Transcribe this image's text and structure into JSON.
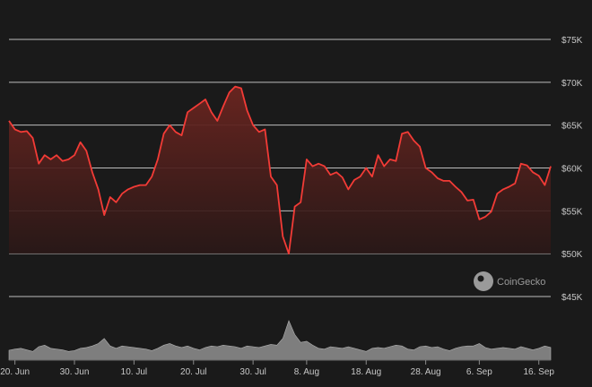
{
  "watermark": {
    "text": "CoinGecko"
  },
  "chart_data": {
    "type": "area",
    "title": "",
    "xlabel": "",
    "ylabel": "",
    "ylim": [
      40000,
      77500
    ],
    "grid": true,
    "y_ticks": [
      {
        "value": 75000,
        "label": "$75K"
      },
      {
        "value": 70000,
        "label": "$70K"
      },
      {
        "value": 65000,
        "label": "$65K"
      },
      {
        "value": 60000,
        "label": "$60K"
      },
      {
        "value": 55000,
        "label": "$55K"
      },
      {
        "value": 50000,
        "label": "$50K"
      },
      {
        "value": 45000,
        "label": "$45K"
      }
    ],
    "x_ticks": [
      "20. Jun",
      "30. Jun",
      "10. Jul",
      "20. Jul",
      "30. Jul",
      "8. Aug",
      "18. Aug",
      "28. Aug",
      "6. Sep",
      "16. Sep"
    ],
    "x_tick_dates": [
      "2024-06-20",
      "2024-06-30",
      "2024-07-10",
      "2024-07-20",
      "2024-07-30",
      "2024-08-08",
      "2024-08-18",
      "2024-08-28",
      "2024-09-06",
      "2024-09-16"
    ],
    "colors": {
      "line": "#f23b36",
      "fill_top": "#6b2520",
      "fill_bottom": "#2a1817",
      "grid": "#d9d9d9",
      "volume": "#8a8a8a"
    },
    "x": [
      "2024-06-19",
      "2024-06-20",
      "2024-06-21",
      "2024-06-22",
      "2024-06-23",
      "2024-06-24",
      "2024-06-25",
      "2024-06-26",
      "2024-06-27",
      "2024-06-28",
      "2024-06-29",
      "2024-06-30",
      "2024-07-01",
      "2024-07-02",
      "2024-07-03",
      "2024-07-04",
      "2024-07-05",
      "2024-07-06",
      "2024-07-07",
      "2024-07-08",
      "2024-07-09",
      "2024-07-10",
      "2024-07-11",
      "2024-07-12",
      "2024-07-13",
      "2024-07-14",
      "2024-07-15",
      "2024-07-16",
      "2024-07-17",
      "2024-07-18",
      "2024-07-19",
      "2024-07-20",
      "2024-07-21",
      "2024-07-22",
      "2024-07-23",
      "2024-07-24",
      "2024-07-25",
      "2024-07-26",
      "2024-07-27",
      "2024-07-28",
      "2024-07-29",
      "2024-07-30",
      "2024-07-31",
      "2024-08-01",
      "2024-08-02",
      "2024-08-03",
      "2024-08-04",
      "2024-08-05",
      "2024-08-06",
      "2024-08-07",
      "2024-08-08",
      "2024-08-09",
      "2024-08-10",
      "2024-08-11",
      "2024-08-12",
      "2024-08-13",
      "2024-08-14",
      "2024-08-15",
      "2024-08-16",
      "2024-08-17",
      "2024-08-18",
      "2024-08-19",
      "2024-08-20",
      "2024-08-21",
      "2024-08-22",
      "2024-08-23",
      "2024-08-24",
      "2024-08-25",
      "2024-08-26",
      "2024-08-27",
      "2024-08-28",
      "2024-08-29",
      "2024-08-30",
      "2024-08-31",
      "2024-09-01",
      "2024-09-02",
      "2024-09-03",
      "2024-09-04",
      "2024-09-05",
      "2024-09-06",
      "2024-09-07",
      "2024-09-08",
      "2024-09-09",
      "2024-09-10",
      "2024-09-11",
      "2024-09-12",
      "2024-09-13",
      "2024-09-14",
      "2024-09-15",
      "2024-09-16",
      "2024-09-17",
      "2024-09-18"
    ],
    "price": [
      65500,
      64500,
      64200,
      64300,
      63500,
      60500,
      61500,
      61000,
      61500,
      60800,
      61000,
      61500,
      63000,
      62000,
      59500,
      57500,
      54500,
      56600,
      56000,
      57000,
      57500,
      57800,
      58000,
      58000,
      59000,
      61000,
      64000,
      65000,
      64200,
      63800,
      66500,
      67000,
      67500,
      68000,
      66500,
      65500,
      67200,
      68800,
      69500,
      69300,
      66700,
      65000,
      64200,
      64500,
      59000,
      58000,
      52000,
      50000,
      55500,
      56000,
      61000,
      60200,
      60500,
      60200,
      59200,
      59500,
      58900,
      57500,
      58600,
      59000,
      60000,
      59000,
      61500,
      60200,
      61000,
      60800,
      64000,
      64200,
      63200,
      62500,
      60000,
      59500,
      58800,
      58500,
      58500,
      57800,
      57200,
      56200,
      56300,
      54000,
      54300,
      54900,
      57000,
      57500,
      57800,
      58200,
      60500,
      60300,
      59500,
      59100,
      58000,
      60200
    ],
    "volume": [
      0.25,
      0.28,
      0.3,
      0.26,
      0.22,
      0.34,
      0.38,
      0.3,
      0.28,
      0.26,
      0.22,
      0.24,
      0.3,
      0.32,
      0.36,
      0.42,
      0.55,
      0.36,
      0.3,
      0.36,
      0.34,
      0.32,
      0.3,
      0.28,
      0.24,
      0.3,
      0.38,
      0.42,
      0.36,
      0.32,
      0.36,
      0.3,
      0.26,
      0.32,
      0.36,
      0.34,
      0.38,
      0.36,
      0.34,
      0.3,
      0.36,
      0.34,
      0.32,
      0.36,
      0.4,
      0.38,
      0.55,
      1.0,
      0.65,
      0.45,
      0.48,
      0.38,
      0.3,
      0.28,
      0.34,
      0.32,
      0.3,
      0.34,
      0.3,
      0.26,
      0.22,
      0.3,
      0.32,
      0.3,
      0.34,
      0.38,
      0.36,
      0.28,
      0.26,
      0.34,
      0.36,
      0.32,
      0.34,
      0.28,
      0.24,
      0.3,
      0.34,
      0.36,
      0.36,
      0.42,
      0.32,
      0.28,
      0.3,
      0.32,
      0.3,
      0.28,
      0.34,
      0.3,
      0.26,
      0.3,
      0.36,
      0.32
    ]
  }
}
